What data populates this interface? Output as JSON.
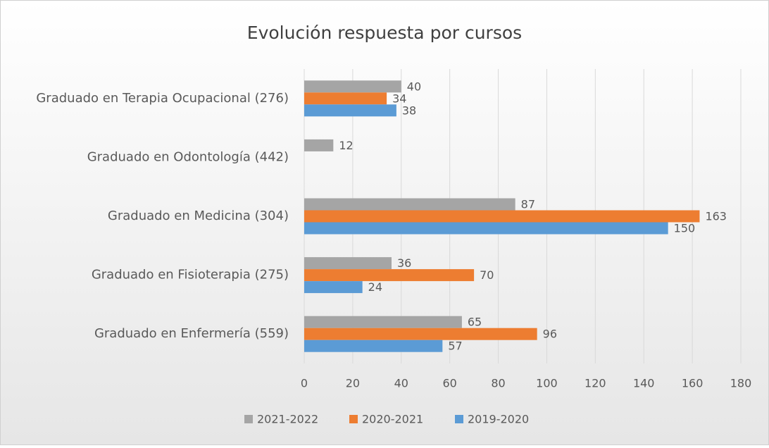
{
  "chart_data": {
    "type": "hbar",
    "title": "Evolución respuesta por cursos",
    "categories": [
      "Graduado en Terapia Ocupacional (276)",
      "Graduado en Odontología (442)",
      "Graduado en Medicina (304)",
      "Graduado en Fisioterapia (275)",
      "Graduado en Enfermería (559)"
    ],
    "series": [
      {
        "name": "2021-2022",
        "color": "#a5a5a5",
        "values": [
          40,
          12,
          87,
          36,
          65
        ]
      },
      {
        "name": "2020-2021",
        "color": "#ed7d31",
        "values": [
          34,
          null,
          163,
          70,
          96
        ]
      },
      {
        "name": "2019-2020",
        "color": "#5b9bd5",
        "values": [
          38,
          null,
          150,
          24,
          57
        ]
      }
    ],
    "xlim": [
      0,
      180
    ],
    "xticks": [
      0,
      20,
      40,
      60,
      80,
      100,
      120,
      140,
      160,
      180
    ],
    "grid": true,
    "legend": "bottom"
  }
}
